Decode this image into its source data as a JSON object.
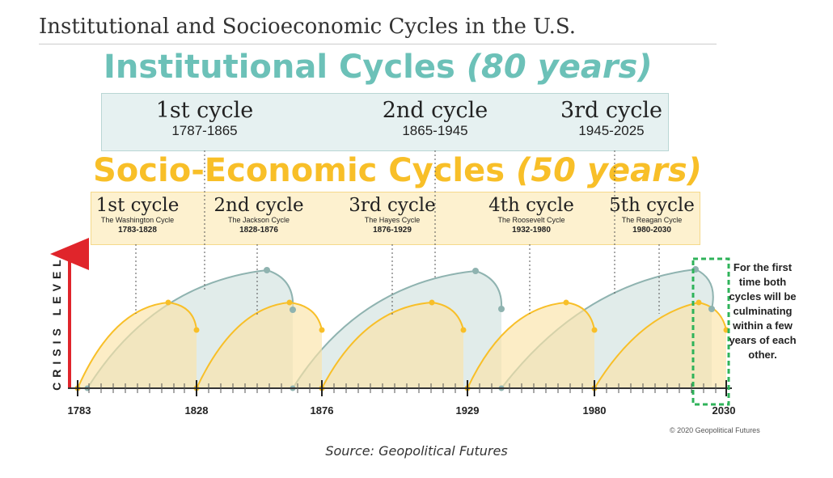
{
  "title": "Institutional and Socioeconomic Cycles in the U.S.",
  "institutional": {
    "heading": "Institutional Cycles",
    "period": "(80 years)",
    "cycles": [
      {
        "name": "1st cycle",
        "years": "1787-1865"
      },
      {
        "name": "2nd cycle",
        "years": "1865-1945"
      },
      {
        "name": "3rd cycle",
        "years": "1945-2025"
      }
    ]
  },
  "socioeconomic": {
    "heading": "Socio-Economic Cycles",
    "period": "(50 years)",
    "cycles": [
      {
        "name": "1st cycle",
        "sub": "The Washington Cycle",
        "years": "1783-1828"
      },
      {
        "name": "2nd cycle",
        "sub": "The Jackson Cycle",
        "years": "1828-1876"
      },
      {
        "name": "3rd cycle",
        "sub": "The Hayes Cycle",
        "years": "1876-1929"
      },
      {
        "name": "4th cycle",
        "sub": "The Roosevelt Cycle",
        "years": "1932-1980"
      },
      {
        "name": "5th cycle",
        "sub": "The Reagan Cycle",
        "years": "1980-2030"
      }
    ]
  },
  "y_axis_label": "CRISIS LEVEL",
  "x_axis_ticks": [
    "1783",
    "1828",
    "1876",
    "1929",
    "1980",
    "2030"
  ],
  "note": "For the first time both cycles will be culminating within a few years of each other.",
  "copyright": "© 2020 Geopolitical Futures",
  "source": "Source: Geopolitical Futures",
  "colors": {
    "institutional": "#6cc1b8",
    "institutional_curve": "#8fb3b0",
    "socioeconomic": "#f8bf28",
    "highlight": "#2fb35a",
    "arrow": "#e0252b"
  }
}
